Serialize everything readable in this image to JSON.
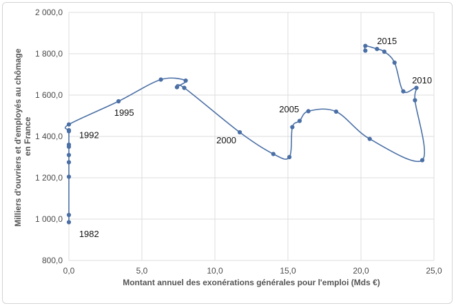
{
  "chart_data": {
    "type": "scatter",
    "xlabel": "Montant annuel des exonérations générales pour l'emploi (Mds €)",
    "ylabel_lines": [
      "Milliers d'ouvriers et d'employés au chômage",
      "en France"
    ],
    "xlim": [
      0,
      25
    ],
    "ylim": [
      800,
      2000
    ],
    "x_ticks": [
      0,
      5,
      10,
      15,
      20,
      25
    ],
    "x_tick_labels": [
      "0,0",
      "5,0",
      "10,0",
      "15,0",
      "20,0",
      "25,0"
    ],
    "y_ticks": [
      800,
      1000,
      1200,
      1400,
      1600,
      1800,
      2000
    ],
    "y_tick_labels": [
      "800,0",
      "1 000,0",
      "1 200,0",
      "1 400,0",
      "1 600,0",
      "1 800,0",
      "2 000,0"
    ],
    "grid": true,
    "line_color": "#4a6fa5",
    "marker_color": "#4a6fa5",
    "points": [
      {
        "x": 0,
        "y": 985
      },
      {
        "x": 0,
        "y": 1020
      },
      {
        "x": 0,
        "y": 1205
      },
      {
        "x": 0,
        "y": 1275
      },
      {
        "x": 0,
        "y": 1310
      },
      {
        "x": 0,
        "y": 1350
      },
      {
        "x": 0,
        "y": 1360
      },
      {
        "x": 0,
        "y": 1425
      },
      {
        "x": 0,
        "y": 1430
      },
      {
        "x": 0,
        "y": 1458
      },
      {
        "x": 3.4,
        "y": 1570
      },
      {
        "x": 6.3,
        "y": 1675
      },
      {
        "x": 8.0,
        "y": 1670
      },
      {
        "x": 7.4,
        "y": 1638
      },
      {
        "x": 7.9,
        "y": 1635
      },
      {
        "x": 11.7,
        "y": 1420
      },
      {
        "x": 14.0,
        "y": 1315
      },
      {
        "x": 15.1,
        "y": 1300
      },
      {
        "x": 15.3,
        "y": 1445
      },
      {
        "x": 15.8,
        "y": 1475
      },
      {
        "x": 16.4,
        "y": 1522
      },
      {
        "x": 18.3,
        "y": 1520
      },
      {
        "x": 20.6,
        "y": 1388
      },
      {
        "x": 24.2,
        "y": 1285
      },
      {
        "x": 23.7,
        "y": 1575
      },
      {
        "x": 23.8,
        "y": 1635
      },
      {
        "x": 22.9,
        "y": 1618
      },
      {
        "x": 22.3,
        "y": 1757
      },
      {
        "x": 21.6,
        "y": 1810
      },
      {
        "x": 21.1,
        "y": 1823
      },
      {
        "x": 20.3,
        "y": 1838
      },
      {
        "x": 20.3,
        "y": 1815
      }
    ],
    "annotations": [
      {
        "text": "1982",
        "x": 0.7,
        "y": 927
      },
      {
        "text": "1992",
        "x": 0.7,
        "y": 1405
      },
      {
        "text": "1995",
        "x": 3.1,
        "y": 1513
      },
      {
        "text": "2000",
        "x": 10.1,
        "y": 1380
      },
      {
        "text": "2005",
        "x": 14.4,
        "y": 1530
      },
      {
        "text": "2010",
        "x": 23.5,
        "y": 1670
      },
      {
        "text": "2015",
        "x": 21.1,
        "y": 1860
      }
    ]
  }
}
